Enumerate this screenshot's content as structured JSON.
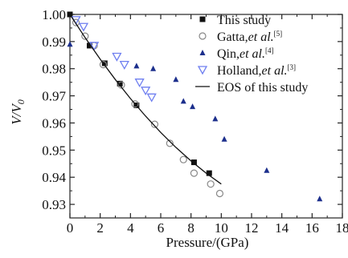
{
  "chart_data": {
    "type": "scatter",
    "xlabel": "Pressure/(GPa)",
    "ylabel": "V/V",
    "ylabel_subscript": "0",
    "xlim": [
      0,
      18
    ],
    "ylim": [
      0.925,
      1.0
    ],
    "x_ticks": [
      "0",
      "2",
      "4",
      "6",
      "8",
      "10",
      "12",
      "14",
      "16",
      "18"
    ],
    "x_tick_values": [
      0,
      2,
      4,
      6,
      8,
      10,
      12,
      14,
      16,
      18
    ],
    "y_ticks": [
      "1.00",
      "0.99",
      "0.98",
      "0.97",
      "0.96",
      "0.95",
      "0.94",
      "0.93"
    ],
    "y_tick_values": [
      1.0,
      0.99,
      0.98,
      0.97,
      0.96,
      0.95,
      0.94,
      0.93
    ],
    "grid": false,
    "legend_position": "top-right",
    "series": [
      {
        "name": "This study",
        "ref": "",
        "name_suffix": "",
        "marker": "filled-square",
        "color": "#111111",
        "x": [
          0.0,
          1.3,
          2.3,
          3.3,
          4.4,
          8.2,
          9.2
        ],
        "y": [
          1.0,
          0.9885,
          0.982,
          0.9745,
          0.9665,
          0.9455,
          0.9415
        ]
      },
      {
        "name": "Gatta,",
        "name_suffix": "et al.",
        "ref": "[5]",
        "marker": "open-circle",
        "color": "#888888",
        "x": [
          0.4,
          1.0,
          1.6,
          2.2,
          3.4,
          4.3,
          5.6,
          6.6,
          7.5,
          8.2,
          9.3,
          9.9
        ],
        "y": [
          0.997,
          0.992,
          0.9885,
          0.9815,
          0.974,
          0.967,
          0.9595,
          0.9525,
          0.9465,
          0.9415,
          0.9375,
          0.934
        ]
      },
      {
        "name": "Qin,",
        "name_suffix": "et al.",
        "ref": "[4]",
        "marker": "filled-triangle",
        "color": "#1c2f8c",
        "x": [
          0.0,
          4.4,
          5.5,
          7.0,
          7.5,
          8.1,
          9.6,
          10.2,
          13.0,
          16.5
        ],
        "y": [
          0.989,
          0.981,
          0.98,
          0.976,
          0.968,
          0.966,
          0.9615,
          0.954,
          0.9425,
          0.932
        ]
      },
      {
        "name": "Holland,",
        "name_suffix": "et al.",
        "ref": "[3]",
        "marker": "open-triangle-down",
        "color": "#6f7ff0",
        "x": [
          0.4,
          0.9,
          1.6,
          3.1,
          3.6,
          4.6,
          5.0,
          5.4
        ],
        "y": [
          0.998,
          0.9955,
          0.9885,
          0.9845,
          0.9815,
          0.975,
          0.972,
          0.9695
        ]
      },
      {
        "name": "EOS of this study",
        "ref": "",
        "name_suffix": "",
        "marker": "line",
        "color": "#111111",
        "x": [
          0,
          1,
          2,
          3,
          4,
          5,
          6,
          7,
          8,
          9,
          10
        ],
        "y": [
          1.0,
          0.9915,
          0.9835,
          0.976,
          0.969,
          0.9625,
          0.9565,
          0.951,
          0.946,
          0.9415,
          0.9375
        ]
      }
    ]
  }
}
